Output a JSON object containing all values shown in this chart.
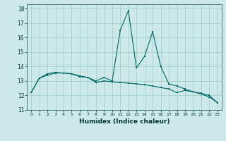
{
  "xlabel": "Humidex (Indice chaleur)",
  "ylabel": "",
  "xlim": [
    -0.5,
    23.5
  ],
  "ylim": [
    11,
    18.3
  ],
  "yticks": [
    11,
    12,
    13,
    14,
    15,
    16,
    17,
    18
  ],
  "xticks": [
    0,
    1,
    2,
    3,
    4,
    5,
    6,
    7,
    8,
    9,
    10,
    11,
    12,
    13,
    14,
    15,
    16,
    17,
    18,
    19,
    20,
    21,
    22,
    23
  ],
  "bg_color": "#cce8e8",
  "grid_color": "#99cccc",
  "line_color": "#006666",
  "line1": [
    12.2,
    13.2,
    13.5,
    13.6,
    13.55,
    13.5,
    13.3,
    13.25,
    13.0,
    13.25,
    13.0,
    16.5,
    17.85,
    13.9,
    14.7,
    16.4,
    14.0,
    12.8,
    12.65,
    12.45,
    12.25,
    12.1,
    11.9,
    11.5
  ],
  "line2": [
    12.2,
    13.2,
    13.4,
    13.55,
    13.55,
    13.5,
    13.35,
    13.25,
    12.9,
    13.0,
    12.95,
    12.9,
    12.85,
    12.8,
    12.75,
    12.65,
    12.55,
    12.45,
    12.2,
    12.35,
    12.25,
    12.15,
    12.0,
    11.5
  ]
}
